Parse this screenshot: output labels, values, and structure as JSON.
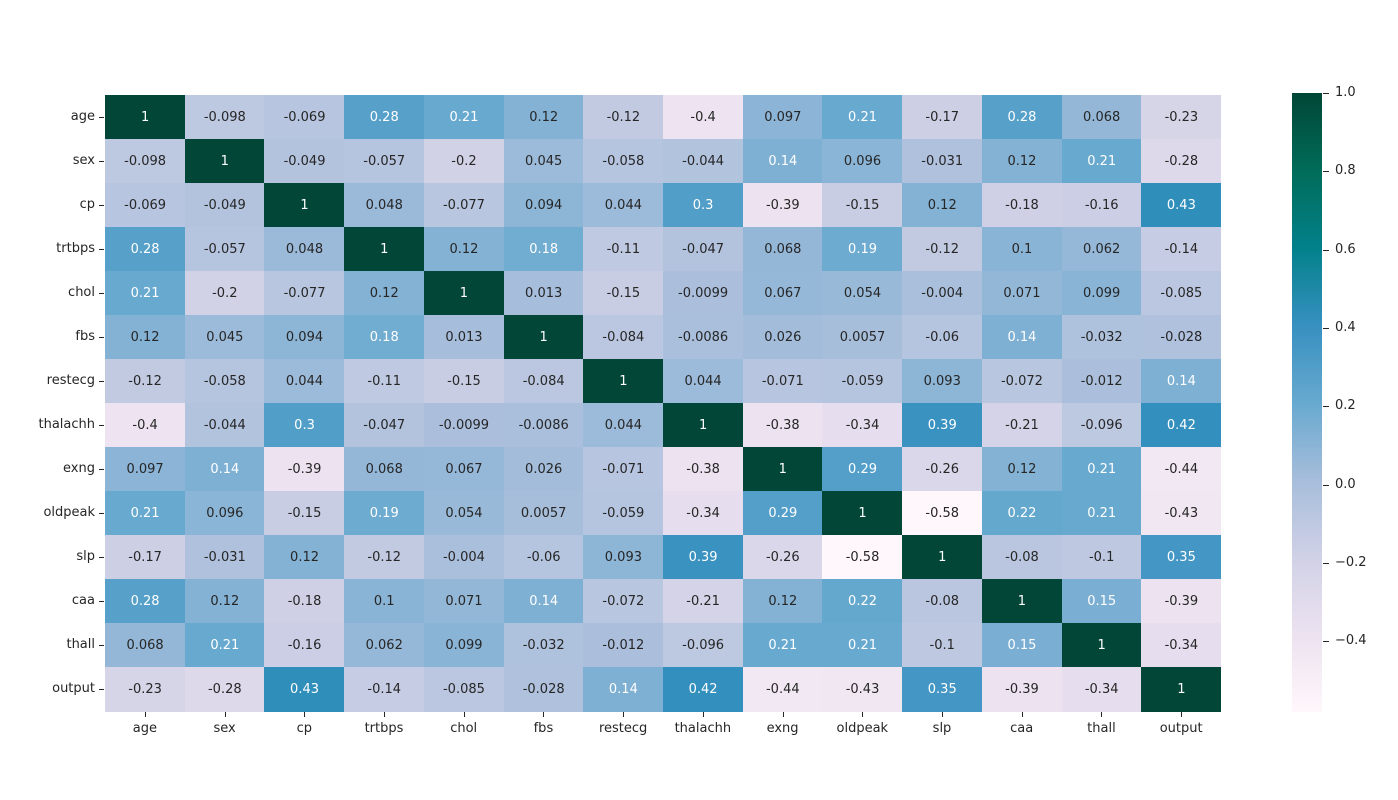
{
  "chart_data": {
    "type": "heatmap",
    "title": "",
    "xlabel": "",
    "ylabel": "",
    "categories": [
      "age",
      "sex",
      "cp",
      "trtbps",
      "chol",
      "fbs",
      "restecg",
      "thalachh",
      "exng",
      "oldpeak",
      "slp",
      "caa",
      "thall",
      "output"
    ],
    "matrix": [
      [
        1,
        -0.098,
        -0.069,
        0.28,
        0.21,
        0.12,
        -0.12,
        -0.4,
        0.097,
        0.21,
        -0.17,
        0.28,
        0.068,
        -0.23
      ],
      [
        -0.098,
        1,
        -0.049,
        -0.057,
        -0.2,
        0.045,
        -0.058,
        -0.044,
        0.14,
        0.096,
        -0.031,
        0.12,
        0.21,
        -0.28
      ],
      [
        -0.069,
        -0.049,
        1,
        0.048,
        -0.077,
        0.094,
        0.044,
        0.3,
        -0.39,
        -0.15,
        0.12,
        -0.18,
        -0.16,
        0.43
      ],
      [
        0.28,
        -0.057,
        0.048,
        1,
        0.12,
        0.18,
        -0.11,
        -0.047,
        0.068,
        0.19,
        -0.12,
        0.1,
        0.062,
        -0.14
      ],
      [
        0.21,
        -0.2,
        -0.077,
        0.12,
        1,
        0.013,
        -0.15,
        -0.0099,
        0.067,
        0.054,
        -0.004,
        0.071,
        0.099,
        -0.085
      ],
      [
        0.12,
        0.045,
        0.094,
        0.18,
        0.013,
        1,
        -0.084,
        -0.0086,
        0.026,
        0.0057,
        -0.06,
        0.14,
        -0.032,
        -0.028
      ],
      [
        -0.12,
        -0.058,
        0.044,
        -0.11,
        -0.15,
        -0.084,
        1,
        0.044,
        -0.071,
        -0.059,
        0.093,
        -0.072,
        -0.012,
        0.14
      ],
      [
        -0.4,
        -0.044,
        0.3,
        -0.047,
        -0.0099,
        -0.0086,
        0.044,
        1,
        -0.38,
        -0.34,
        0.39,
        -0.21,
        -0.096,
        0.42
      ],
      [
        0.097,
        0.14,
        -0.39,
        0.068,
        0.067,
        0.026,
        -0.071,
        -0.38,
        1,
        0.29,
        -0.26,
        0.12,
        0.21,
        -0.44
      ],
      [
        0.21,
        0.096,
        -0.15,
        0.19,
        0.054,
        0.0057,
        -0.059,
        -0.34,
        0.29,
        1,
        -0.58,
        0.22,
        0.21,
        -0.43
      ],
      [
        -0.17,
        -0.031,
        0.12,
        -0.12,
        -0.004,
        -0.06,
        0.093,
        0.39,
        -0.26,
        -0.58,
        1,
        -0.08,
        -0.1,
        0.35
      ],
      [
        0.28,
        0.12,
        -0.18,
        0.1,
        0.071,
        0.14,
        -0.072,
        -0.21,
        0.12,
        0.22,
        -0.08,
        1,
        0.15,
        -0.39
      ],
      [
        0.068,
        0.21,
        -0.16,
        0.062,
        0.099,
        -0.032,
        -0.012,
        -0.096,
        0.21,
        0.21,
        -0.1,
        0.15,
        1,
        -0.34
      ],
      [
        -0.23,
        -0.28,
        0.43,
        -0.14,
        -0.085,
        -0.028,
        0.14,
        0.42,
        -0.44,
        -0.43,
        0.35,
        -0.39,
        -0.34,
        1
      ]
    ],
    "vmin": -0.58,
    "vmax": 1.0,
    "annotations_shown": true,
    "grid": false,
    "legend": false,
    "colormap_name": "PuBuGn",
    "colormap_stops": [
      "#fff7fb",
      "#ece2f0",
      "#d0d1e6",
      "#a6bddb",
      "#67a9cf",
      "#3690c0",
      "#02818a",
      "#016c59",
      "#014636"
    ],
    "annotation_color_dark": "#262626",
    "annotation_color_light": "#ffffff",
    "axis_text_color": "#262626",
    "background_color": "#ffffff",
    "colorbar": {
      "position": "right",
      "tick_labels": [
        "1.0",
        "0.8",
        "0.6",
        "0.4",
        "0.2",
        "0.0",
        "−0.2",
        "−0.4"
      ],
      "tick_values": [
        1.0,
        0.8,
        0.6,
        0.4,
        0.2,
        0.0,
        -0.2,
        -0.4
      ]
    }
  }
}
